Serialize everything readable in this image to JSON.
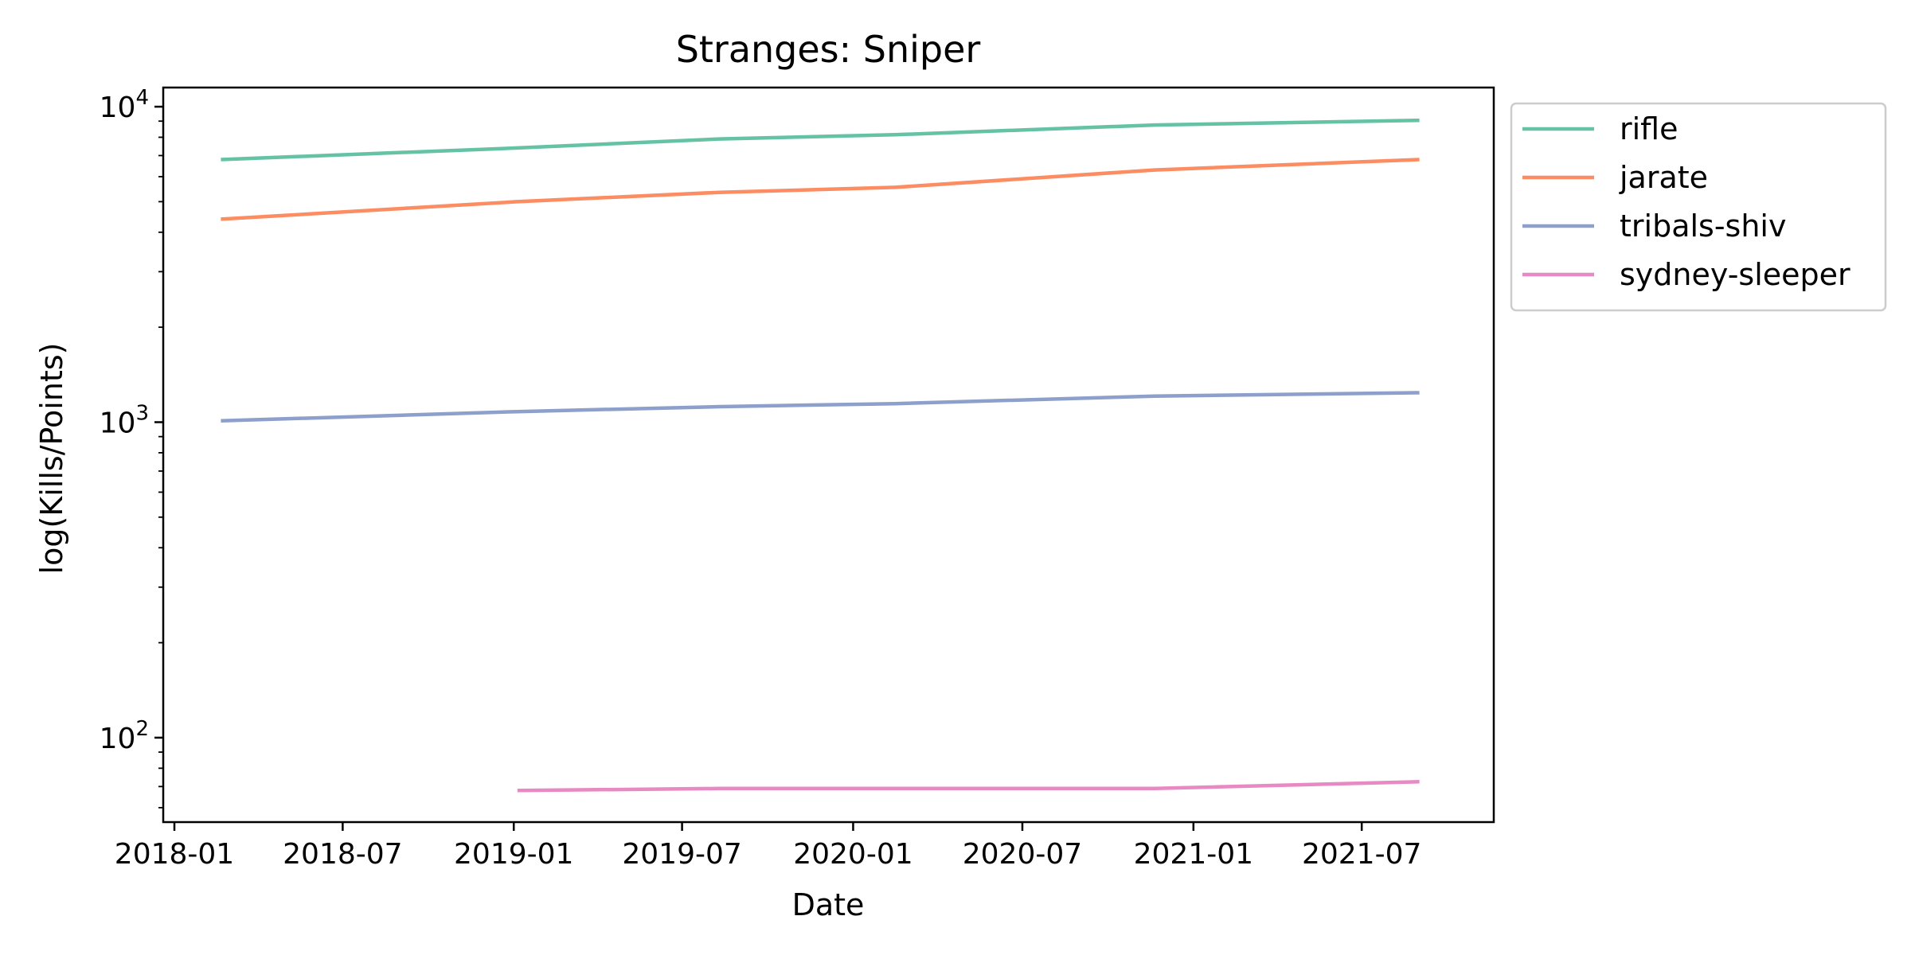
{
  "chart_data": {
    "type": "line",
    "title": "Stranges: Sniper",
    "xlabel": "Date",
    "ylabel": "log(Kills/Points)",
    "yscale": "log",
    "grid": false,
    "legend_placement": "outside-top-right",
    "xlim": [
      "2017-12-20",
      "2021-11-20"
    ],
    "ylim": [
      54,
      11500
    ],
    "x_ticks": [
      "2018-01",
      "2018-07",
      "2019-01",
      "2019-07",
      "2020-01",
      "2020-07",
      "2021-01",
      "2021-07"
    ],
    "y_ticks": [
      {
        "value": 100,
        "base": "10",
        "exp": "2"
      },
      {
        "value": 1000,
        "base": "10",
        "exp": "3"
      },
      {
        "value": 10000,
        "base": "10",
        "exp": "4"
      }
    ],
    "series": [
      {
        "name": "rifle",
        "color": "#66c2a5",
        "points": [
          {
            "x": "2018-02-20",
            "y": 6800
          },
          {
            "x": "2019-01-05",
            "y": 7400
          },
          {
            "x": "2019-08-10",
            "y": 7900
          },
          {
            "x": "2020-02-15",
            "y": 8150
          },
          {
            "x": "2020-11-20",
            "y": 8750
          },
          {
            "x": "2021-09-01",
            "y": 9050
          }
        ]
      },
      {
        "name": "jarate",
        "color": "#fc8d62",
        "points": [
          {
            "x": "2018-02-20",
            "y": 4400
          },
          {
            "x": "2019-01-05",
            "y": 5000
          },
          {
            "x": "2019-08-10",
            "y": 5350
          },
          {
            "x": "2020-02-15",
            "y": 5550
          },
          {
            "x": "2020-11-20",
            "y": 6300
          },
          {
            "x": "2021-09-01",
            "y": 6800
          }
        ]
      },
      {
        "name": "tribals-shiv",
        "color": "#8da0cb",
        "points": [
          {
            "x": "2018-02-20",
            "y": 1010
          },
          {
            "x": "2019-01-05",
            "y": 1080
          },
          {
            "x": "2019-08-10",
            "y": 1120
          },
          {
            "x": "2020-02-15",
            "y": 1145
          },
          {
            "x": "2020-11-20",
            "y": 1210
          },
          {
            "x": "2021-09-01",
            "y": 1240
          }
        ]
      },
      {
        "name": "sydney-sleeper",
        "color": "#e78ac3",
        "points": [
          {
            "x": "2019-01-05",
            "y": 68
          },
          {
            "x": "2019-08-10",
            "y": 69
          },
          {
            "x": "2020-02-15",
            "y": 69
          },
          {
            "x": "2020-11-20",
            "y": 69
          },
          {
            "x": "2021-09-01",
            "y": 72.5
          }
        ]
      }
    ]
  }
}
